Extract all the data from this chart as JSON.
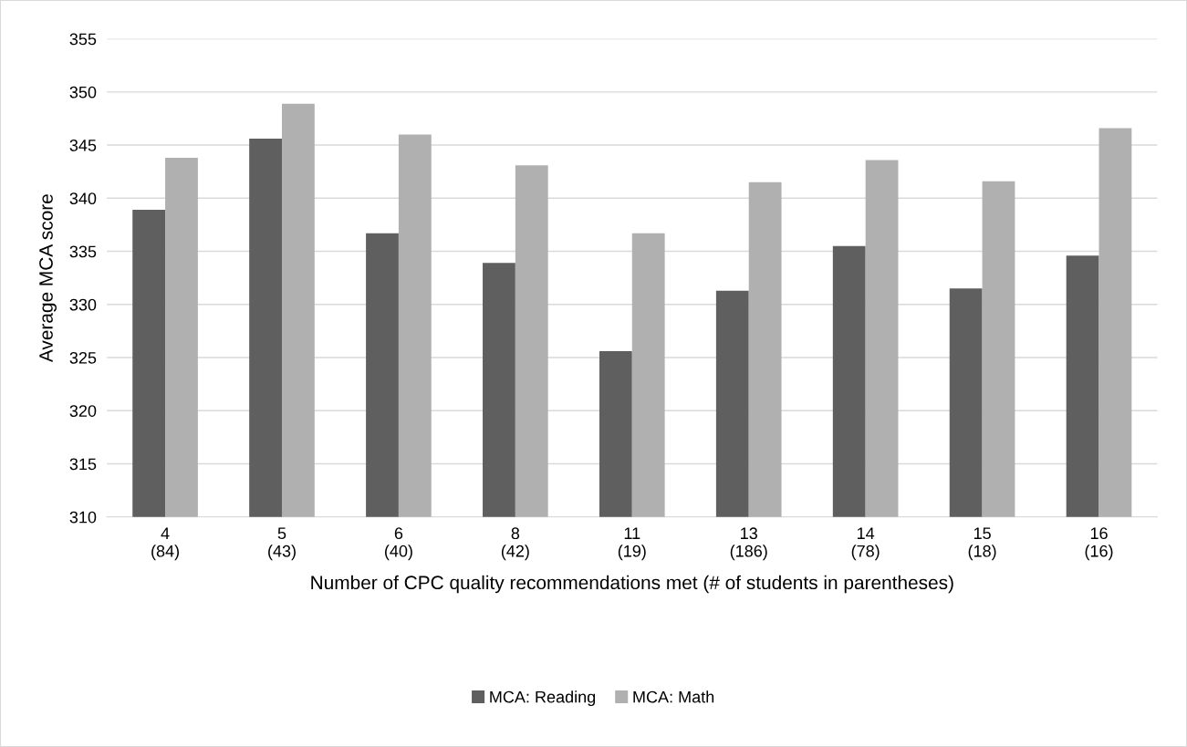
{
  "chart_data": {
    "type": "bar",
    "xlabel": "Number of CPC quality recommendations met (# of students in parentheses)",
    "ylabel": "Average MCA score",
    "categories": [
      "4\n(84)",
      "5\n(43)",
      "6\n(40)",
      "8\n(42)",
      "11\n(19)",
      "13\n(186)",
      "14\n(78)",
      "15\n(18)",
      "16\n(16)"
    ],
    "series": [
      {
        "name": "MCA: Reading",
        "color": "#5f5f5f",
        "values": [
          338.9,
          345.6,
          336.7,
          333.9,
          325.6,
          331.3,
          335.5,
          331.5,
          334.6
        ]
      },
      {
        "name": "MCA: Math",
        "color": "#b0b0b0",
        "values": [
          343.8,
          348.9,
          346.0,
          343.1,
          336.7,
          341.5,
          343.6,
          341.6,
          346.6
        ]
      }
    ],
    "ylim": [
      310,
      355
    ],
    "yticks": [
      310,
      315,
      320,
      325,
      330,
      335,
      340,
      345,
      350,
      355
    ],
    "grid": "y",
    "legend": "bottom"
  }
}
